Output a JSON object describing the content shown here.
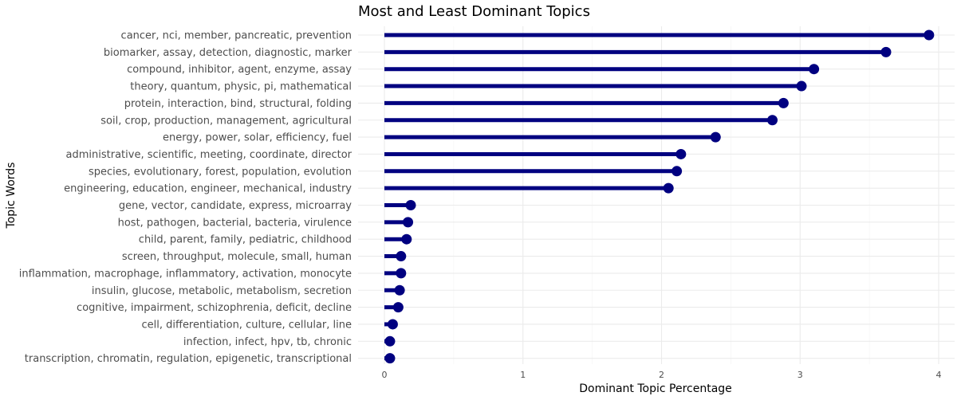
{
  "chart_data": {
    "type": "lollipop",
    "title": "Most and Least Dominant Topics",
    "xlabel": "Dominant Topic Percentage",
    "ylabel": "Topic Words",
    "xlim": [
      0,
      4
    ],
    "x_ticks": [
      "0",
      "1",
      "2",
      "3",
      "4"
    ],
    "grid": true,
    "color": "#000080",
    "categories": [
      "cancer, nci, member, pancreatic, prevention",
      "biomarker, assay, detection, diagnostic, marker",
      "compound, inhibitor, agent, enzyme, assay",
      "theory, quantum, physic, pi, mathematical",
      "protein, interaction, bind, structural, folding",
      "soil, crop, production, management, agricultural",
      "energy, power, solar, efficiency, fuel",
      "administrative, scientific, meeting, coordinate, director",
      "species, evolutionary, forest, population, evolution",
      "engineering, education, engineer, mechanical, industry",
      "gene, vector, candidate, express, microarray",
      "host, pathogen, bacterial, bacteria, virulence",
      "child, parent, family, pediatric, childhood",
      "screen, throughput, molecule, small, human",
      "inflammation, macrophage, inflammatory, activation, monocyte",
      "insulin, glucose, metabolic, metabolism, secretion",
      "cognitive, impairment, schizophrenia, deficit, decline",
      "cell, differentiation, culture, cellular, line",
      "infection, infect, hpv, tb, chronic",
      "transcription, chromatin, regulation, epigenetic, transcriptional"
    ],
    "values": [
      3.93,
      3.62,
      3.1,
      3.01,
      2.88,
      2.8,
      2.39,
      2.14,
      2.11,
      2.05,
      0.19,
      0.17,
      0.16,
      0.12,
      0.12,
      0.11,
      0.1,
      0.06,
      0.04,
      0.04
    ]
  }
}
